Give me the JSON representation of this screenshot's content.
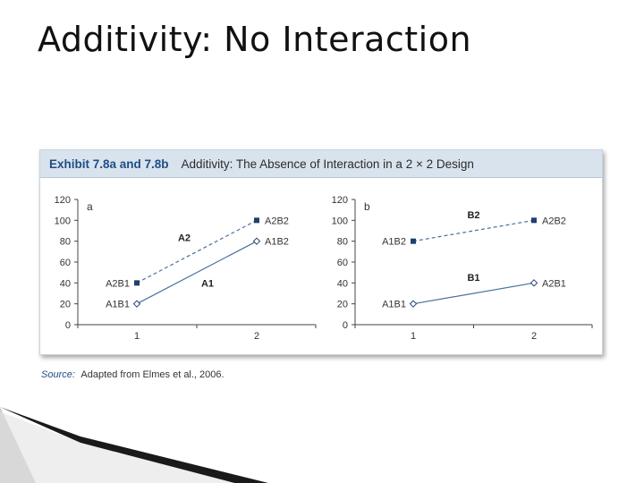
{
  "slide": {
    "title": "Additivity: No Interaction"
  },
  "exhibit": {
    "label": "Exhibit 7.8a and 7.8b",
    "caption": "Additivity: The Absence of Interaction in a 2 × 2 Design"
  },
  "source": {
    "label": "Source:",
    "text": "Adapted from Elmes et al., 2006."
  },
  "colors": {
    "header_bg": "#d9e3ee",
    "header_label": "#1f4e85",
    "series_line": "#4a6f9c",
    "marker": "#1f3f6e"
  },
  "chart_data": [
    {
      "type": "line",
      "panel_label": "a",
      "x": [
        1,
        2
      ],
      "xticks": [
        "1",
        "2"
      ],
      "yticks": [
        "0",
        "20",
        "40",
        "60",
        "80",
        "100",
        "120"
      ],
      "ylim": [
        0,
        120
      ],
      "series": [
        {
          "name": "A2",
          "style": "dashed",
          "marker": "square",
          "values": [
            40,
            100
          ],
          "point_labels": [
            "A2B1",
            "A2B2"
          ]
        },
        {
          "name": "A1",
          "style": "solid",
          "marker": "diamond",
          "values": [
            20,
            80
          ],
          "point_labels": [
            "A1B1",
            "A1B2"
          ]
        }
      ]
    },
    {
      "type": "line",
      "panel_label": "b",
      "x": [
        1,
        2
      ],
      "xticks": [
        "1",
        "2"
      ],
      "yticks": [
        "0",
        "20",
        "40",
        "60",
        "80",
        "100",
        "120"
      ],
      "ylim": [
        0,
        120
      ],
      "series": [
        {
          "name": "B2",
          "style": "dashed",
          "marker": "square",
          "values": [
            80,
            100
          ],
          "point_labels": [
            "A1B2",
            "A2B2"
          ]
        },
        {
          "name": "B1",
          "style": "solid",
          "marker": "diamond",
          "values": [
            20,
            40
          ],
          "point_labels": [
            "A1B1",
            "A2B1"
          ]
        }
      ]
    }
  ]
}
